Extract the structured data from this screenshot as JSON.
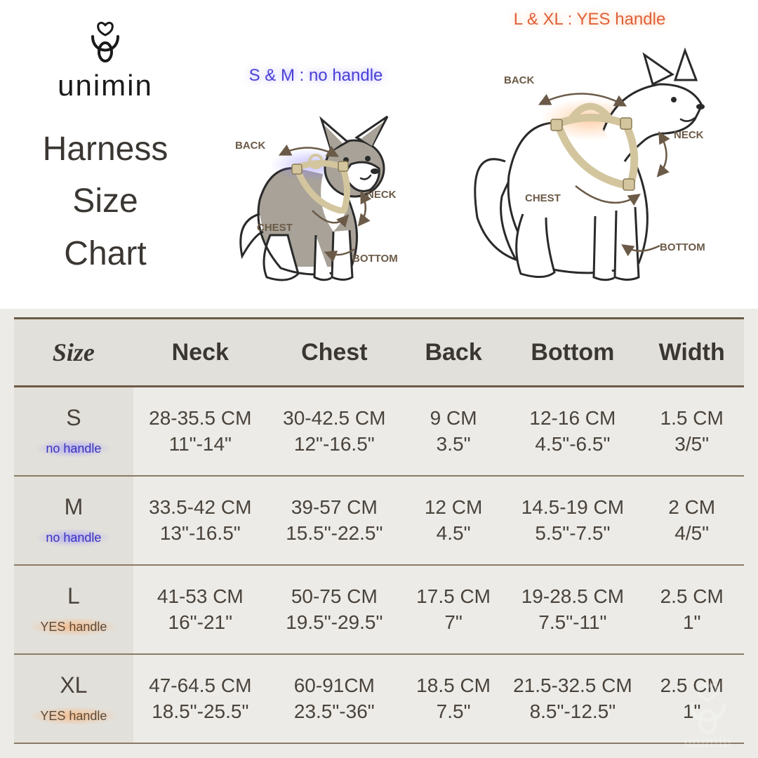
{
  "brand": "unimin",
  "title_lines": [
    "Harness",
    "Size",
    "Chart"
  ],
  "diagram": {
    "small_caption": "S & M : no handle",
    "large_caption": "L & XL : YES handle",
    "labels": {
      "back": "BACK",
      "neck": "NECK",
      "chest": "CHEST",
      "bottom": "BOTTOM"
    },
    "colors": {
      "small_caption": "#4a3fd6",
      "large_caption": "#e0603a",
      "label_text": "#6b5a47",
      "dog_outline": "#2a2a2a",
      "dog_shade": "#a8a298",
      "harness": "#d3c69f",
      "arrow": "#6b5a47",
      "glow_blue": "rgba(140,130,255,0.5)",
      "glow_orange": "rgba(255,170,100,0.55)"
    }
  },
  "table": {
    "type": "table",
    "header_bg": "#e2e0da",
    "body_bg": "#ecebe7",
    "border_color": "#6b5a47",
    "row_border_color": "#8a7a67",
    "header_fontsize": 34,
    "cell_fontsize": 28,
    "columns": [
      "Size",
      "Neck",
      "Chest",
      "Back",
      "Bottom",
      "Width"
    ],
    "rows": [
      {
        "size": "S",
        "handle": "no handle",
        "handle_style": "blue",
        "neck_cm": "28-35.5 CM",
        "neck_in": "11\"-14\"",
        "chest_cm": "30-42.5 CM",
        "chest_in": "12\"-16.5\"",
        "back_cm": "9 CM",
        "back_in": "3.5\"",
        "bottom_cm": "12-16 CM",
        "bottom_in": "4.5\"-6.5\"",
        "width_cm": "1.5 CM",
        "width_in": "3/5\""
      },
      {
        "size": "M",
        "handle": "no handle",
        "handle_style": "blue",
        "neck_cm": "33.5-42 CM",
        "neck_in": "13\"-16.5\"",
        "chest_cm": "39-57 CM",
        "chest_in": "15.5\"-22.5\"",
        "back_cm": "12 CM",
        "back_in": "4.5\"",
        "bottom_cm": "14.5-19 CM",
        "bottom_in": "5.5\"-7.5\"",
        "width_cm": "2 CM",
        "width_in": "4/5\""
      },
      {
        "size": "L",
        "handle": "YES  handle",
        "handle_style": "orange",
        "neck_cm": "41-53 CM",
        "neck_in": "16\"-21\"",
        "chest_cm": "50-75 CM",
        "chest_in": "19.5\"-29.5\"",
        "back_cm": "17.5 CM",
        "back_in": "7\"",
        "bottom_cm": "19-28.5 CM",
        "bottom_in": "7.5\"-11\"",
        "width_cm": "2.5 CM",
        "width_in": "1\""
      },
      {
        "size": "XL",
        "handle": "YES  handle",
        "handle_style": "orange",
        "neck_cm": "47-64.5 CM",
        "neck_in": "18.5\"-25.5\"",
        "chest_cm": "60-91CM",
        "chest_in": "23.5\"-36\"",
        "back_cm": "18.5 CM",
        "back_in": "7.5\"",
        "bottom_cm": "21.5-32.5 CM",
        "bottom_in": "8.5\"-12.5\"",
        "width_cm": "2.5 CM",
        "width_in": "1\""
      }
    ]
  }
}
